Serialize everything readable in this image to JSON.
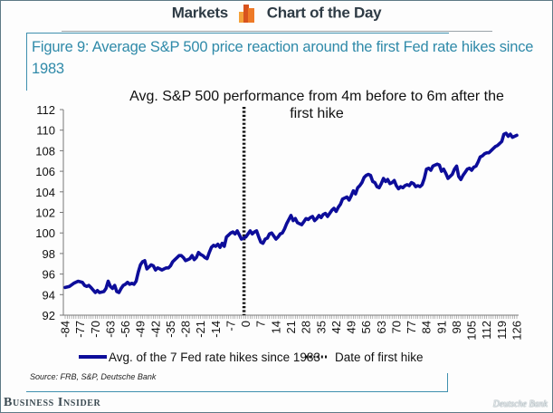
{
  "header": {
    "left_label": "Markets",
    "right_label": "Chart of the Day",
    "logo_icon": "bar-chart-icon"
  },
  "figure_title": "Figure 9: Average S&P 500 price reaction around the first Fed rate hikes since 1983",
  "source": "Source: FRB, S&P, Deutsche Bank",
  "publisher": "Business Insider",
  "watermark": "Deutsche Bank",
  "colors": {
    "series": "#0d0d9a",
    "title": "#2f8aa9",
    "border": "#3f90ae",
    "header_text": "#2e3b45"
  },
  "chart_data": {
    "type": "line",
    "title": "Avg. S&P 500 performance from 4m before to 6m after the first hike",
    "title_lines": [
      "Avg. S&P 500 performance from 4m before to 6m after the",
      "first hike"
    ],
    "xlabel": "",
    "ylabel": "",
    "xlim": [
      -84,
      126
    ],
    "ylim": [
      92,
      112
    ],
    "grid": false,
    "legend_position": "bottom",
    "x_ticks": [
      "-84",
      "-77",
      "-70",
      "-63",
      "-56",
      "-49",
      "-42",
      "-35",
      "-28",
      "-21",
      "-14",
      "-7",
      "0",
      "7",
      "14",
      "21",
      "28",
      "35",
      "42",
      "49",
      "56",
      "63",
      "70",
      "77",
      "84",
      "91",
      "98",
      "105",
      "112",
      "119",
      "126"
    ],
    "y_ticks": [
      "92",
      "94",
      "96",
      "98",
      "100",
      "102",
      "104",
      "106",
      "108",
      "110",
      "112"
    ],
    "vline": {
      "x": 0,
      "name": "Date of first hike",
      "style": "dotted"
    },
    "series": [
      {
        "name": "Avg. of the 7 Fed rate hikes since 1983",
        "x": [
          -84,
          -82,
          -80,
          -78,
          -76,
          -75,
          -74,
          -73,
          -72,
          -70,
          -69,
          -68,
          -66,
          -65,
          -64,
          -63,
          -62,
          -61,
          -60,
          -59,
          -58,
          -57,
          -56,
          -55,
          -54,
          -53,
          -52,
          -51,
          -50,
          -49,
          -48,
          -47,
          -46,
          -45,
          -44,
          -43,
          -42,
          -41,
          -40,
          -39,
          -38,
          -37,
          -36,
          -35,
          -34,
          -33,
          -32,
          -31,
          -30,
          -29,
          -28,
          -27,
          -26,
          -25,
          -24,
          -23,
          -22,
          -21,
          -20,
          -19,
          -18,
          -17,
          -16,
          -15,
          -14,
          -13,
          -12,
          -11,
          -10,
          -9,
          -8,
          -7,
          -6,
          -5,
          -4,
          -3,
          -2,
          -1,
          0,
          1,
          2,
          3,
          4,
          5,
          6,
          7,
          8,
          9,
          10,
          11,
          12,
          13,
          14,
          15,
          16,
          17,
          18,
          19,
          20,
          21,
          22,
          23,
          24,
          25,
          26,
          27,
          28,
          29,
          30,
          31,
          32,
          33,
          34,
          35,
          36,
          37,
          38,
          39,
          40,
          41,
          42,
          43,
          44,
          45,
          46,
          47,
          48,
          49,
          50,
          51,
          52,
          53,
          54,
          55,
          56,
          57,
          58,
          59,
          60,
          61,
          62,
          63,
          64,
          65,
          66,
          67,
          68,
          69,
          70,
          71,
          72,
          73,
          74,
          75,
          76,
          77,
          78,
          79,
          80,
          81,
          82,
          83,
          84,
          85,
          86,
          87,
          88,
          89,
          90,
          91,
          92,
          93,
          94,
          95,
          96,
          97,
          98,
          99,
          100,
          101,
          102,
          103,
          104,
          105,
          106,
          107,
          108,
          109,
          110,
          111,
          112,
          113,
          114,
          115,
          116,
          117,
          118,
          119,
          120,
          121,
          122,
          123,
          124,
          125,
          126
        ],
        "y": [
          94.7,
          94.8,
          95.1,
          95.3,
          95.2,
          94.9,
          94.8,
          94.9,
          94.7,
          94.2,
          94.4,
          94.2,
          94.3,
          94.6,
          95.3,
          94.8,
          94.6,
          94.9,
          94.3,
          94.2,
          94.6,
          94.9,
          95.0,
          95.2,
          95.0,
          95.1,
          95.0,
          95.3,
          96.2,
          96.9,
          97.2,
          97.3,
          96.5,
          96.7,
          96.9,
          96.8,
          96.4,
          96.6,
          96.5,
          96.4,
          96.5,
          96.6,
          96.6,
          96.8,
          97.2,
          97.4,
          97.6,
          97.8,
          97.8,
          97.6,
          97.3,
          97.4,
          97.5,
          97.8,
          97.4,
          97.6,
          98.1,
          97.9,
          97.8,
          97.6,
          97.5,
          98.1,
          98.6,
          98.8,
          98.7,
          98.9,
          98.6,
          99.0,
          98.7,
          99.6,
          99.8,
          100.0,
          100.1,
          99.9,
          100.2,
          99.8,
          99.4,
          99.5,
          99.6,
          99.9,
          100.2,
          99.9,
          100.1,
          100.2,
          99.6,
          99.1,
          99.0,
          99.4,
          99.5,
          99.9,
          100.0,
          99.7,
          99.4,
          99.6,
          99.9,
          100.0,
          100.4,
          100.9,
          101.3,
          101.7,
          101.2,
          101.4,
          101.0,
          100.9,
          100.8,
          101.1,
          101.4,
          101.3,
          101.5,
          101.6,
          101.2,
          101.4,
          101.7,
          101.5,
          101.8,
          101.9,
          101.6,
          101.9,
          102.2,
          102.4,
          102.1,
          102.5,
          102.8,
          103.3,
          103.4,
          103.5,
          103.2,
          103.6,
          104.1,
          103.8,
          104.4,
          104.6,
          104.9,
          105.4,
          105.6,
          105.7,
          105.6,
          105.0,
          104.9,
          104.5,
          104.4,
          104.8,
          105.3,
          105.0,
          105.2,
          104.8,
          104.9,
          105.1,
          104.6,
          104.3,
          104.5,
          104.4,
          104.6,
          104.7,
          104.6,
          104.9,
          104.8,
          104.5,
          104.6,
          104.5,
          104.7,
          105.3,
          106.2,
          106.3,
          106.1,
          106.5,
          106.6,
          106.7,
          106.6,
          106.0,
          106.2,
          105.8,
          105.3,
          105.5,
          105.7,
          106.2,
          106.5,
          105.5,
          105.2,
          105.6,
          105.9,
          106.2,
          106.3,
          106.1,
          106.4,
          106.5,
          106.9,
          107.4,
          107.5,
          107.7,
          107.8,
          107.8,
          108.0,
          108.2,
          108.4,
          108.5,
          108.7,
          108.9,
          109.6,
          109.7,
          109.4,
          109.6,
          109.3,
          109.4,
          109.5
        ]
      }
    ]
  }
}
